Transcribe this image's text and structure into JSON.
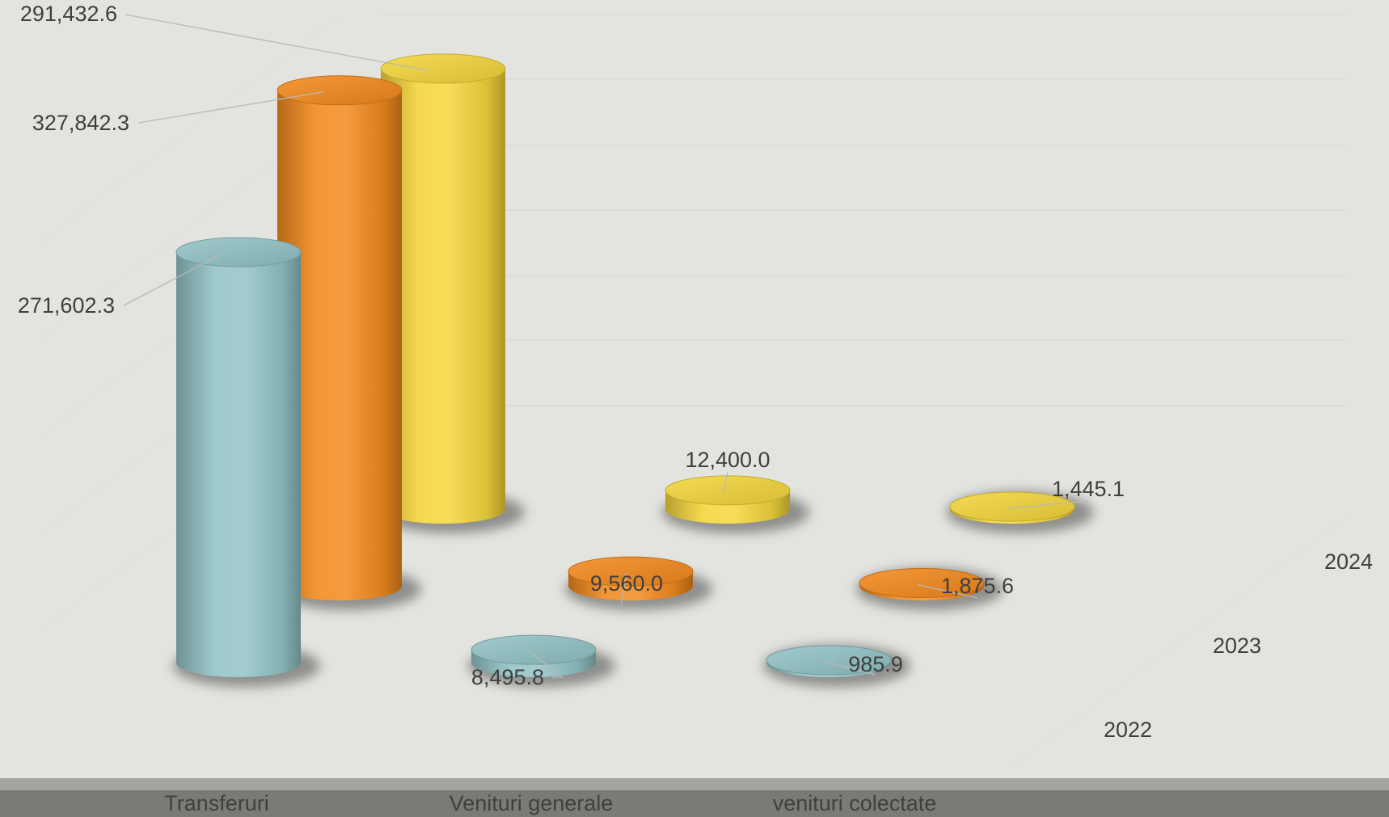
{
  "chart_data": {
    "type": "bar",
    "subtype": "3d-cylinder",
    "categories": [
      "Transferuri",
      "Venituri generale",
      "venituri colectate"
    ],
    "series": [
      {
        "name": "2022",
        "color": "#93c3c6",
        "values": [
          271602.3,
          8495.8,
          985.9
        ],
        "labels": [
          "271,602.3",
          "8,495.8",
          "985.9"
        ]
      },
      {
        "name": "2023",
        "color": "#f28a1e",
        "values": [
          327842.3,
          9560.0,
          1875.6
        ],
        "labels": [
          "327,842.3",
          "9,560.0",
          "1,875.6"
        ]
      },
      {
        "name": "2024",
        "color": "#f4d63c",
        "values": [
          291432.6,
          12400.0,
          1445.1
        ],
        "labels": [
          "291,432.6",
          "12,400.0",
          "1,445.1"
        ]
      }
    ],
    "title": "",
    "xlabel": "",
    "ylabel": "",
    "grid": true,
    "background": "#e3e3df",
    "axis_band_color": "#7a7b74"
  }
}
